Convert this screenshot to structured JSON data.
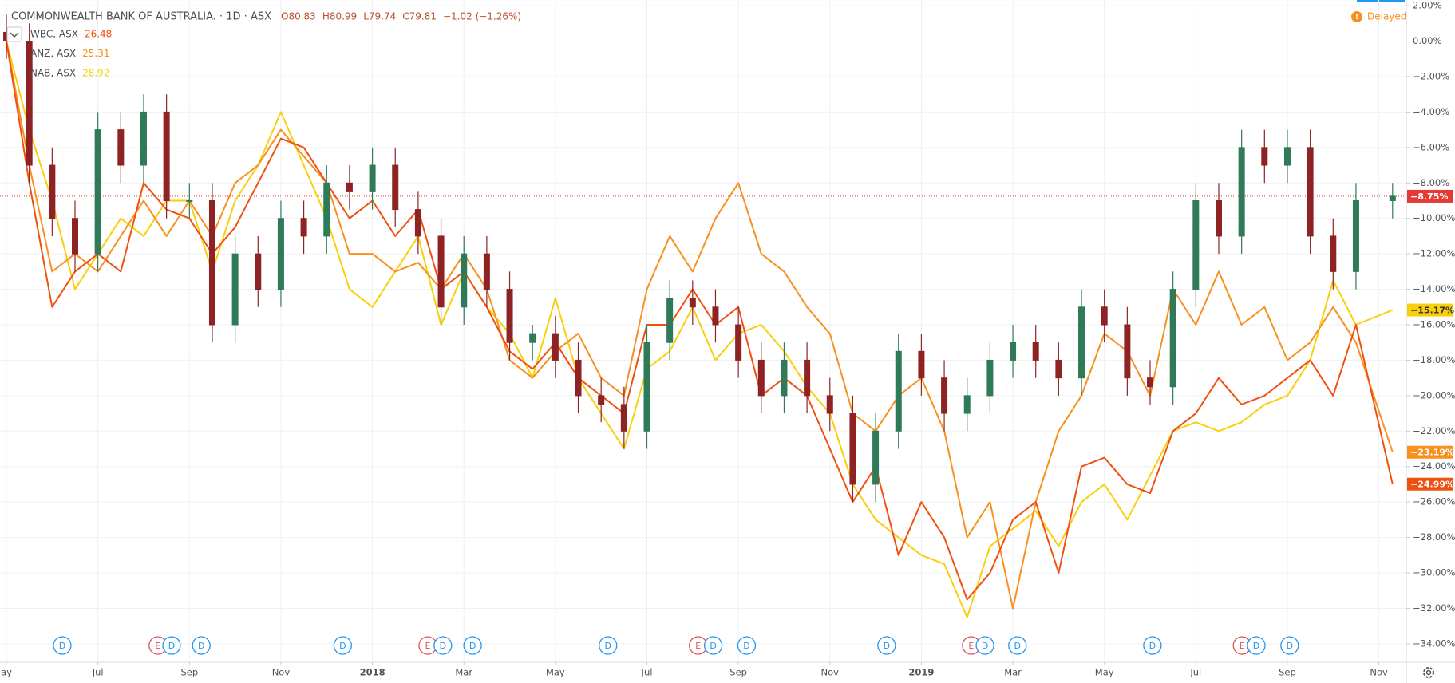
{
  "chart_data": {
    "type": "candlestick",
    "header": {
      "title": "COMMONWEALTH BANK OF AUSTRALIA. · 1D · ASX",
      "ohlc": [
        "O80.83",
        "H80.99",
        "L79.74",
        "C79.81"
      ],
      "change": "−1.02 (−1.26%)",
      "status": "Delayed",
      "color": "#b8502e"
    },
    "xlim": [
      -0.14,
      30.6
    ],
    "ylim": [
      -35.04,
      2.32
    ],
    "grid": true,
    "xticks": [
      {
        "value": 0,
        "label": "ay"
      },
      {
        "value": 2,
        "label": "Jul"
      },
      {
        "value": 4,
        "label": "Sep"
      },
      {
        "value": 6,
        "label": "Nov"
      },
      {
        "value": 8,
        "label": "2018",
        "bold": true
      },
      {
        "value": 10,
        "label": "Mar"
      },
      {
        "value": 12,
        "label": "May"
      },
      {
        "value": 14,
        "label": "Jul"
      },
      {
        "value": 16,
        "label": "Sep"
      },
      {
        "value": 18,
        "label": "Nov"
      },
      {
        "value": 20,
        "label": "2019",
        "bold": true
      },
      {
        "value": 22,
        "label": "Mar"
      },
      {
        "value": 24,
        "label": "May"
      },
      {
        "value": 26,
        "label": "Jul"
      },
      {
        "value": 28,
        "label": "Sep"
      },
      {
        "value": 30,
        "label": "Nov"
      }
    ],
    "yticks": [
      {
        "value": 2,
        "label": "2.00%"
      },
      {
        "value": 0,
        "label": "0.00%"
      },
      {
        "value": -2,
        "label": "−2.00%"
      },
      {
        "value": -4,
        "label": "−4.00%"
      },
      {
        "value": -6,
        "label": "−6.00%"
      },
      {
        "value": -8,
        "label": "−8.00%"
      },
      {
        "value": -10,
        "label": "−10.00%"
      },
      {
        "value": -12,
        "label": "−12.00%"
      },
      {
        "value": -14,
        "label": "−14.00%"
      },
      {
        "value": -16,
        "label": "−16.00%"
      },
      {
        "value": -18,
        "label": "−18.00%"
      },
      {
        "value": -20,
        "label": "−20.00%"
      },
      {
        "value": -22,
        "label": "−22.00%"
      },
      {
        "value": -24,
        "label": "−24.00%"
      },
      {
        "value": -26,
        "label": "−26.00%"
      },
      {
        "value": -28,
        "label": "−28.00%"
      },
      {
        "value": -30,
        "label": "−30.00%"
      },
      {
        "value": -32,
        "label": "−32.00%"
      },
      {
        "value": -34,
        "label": "−34.00%"
      }
    ],
    "x": [
      0,
      0.5,
      1,
      1.5,
      2,
      2.5,
      3,
      3.5,
      4,
      4.5,
      5,
      5.5,
      6,
      6.5,
      7,
      7.5,
      8,
      8.5,
      9,
      9.5,
      10,
      10.5,
      11,
      11.5,
      12,
      12.5,
      13,
      13.5,
      14,
      14.5,
      15,
      15.5,
      16,
      16.5,
      17,
      17.5,
      18,
      18.5,
      19,
      19.5,
      20,
      20.5,
      21,
      21.5,
      22,
      22.5,
      23,
      23.5,
      24,
      24.5,
      25,
      25.5,
      26,
      26.5,
      27,
      27.5,
      28,
      28.5,
      29,
      29.5,
      30.3
    ],
    "candles": {
      "up_color": "#2f7a57",
      "down_color": "#8e2323",
      "open": [
        0.5,
        0,
        -7,
        -10,
        -12,
        -5,
        -7,
        -4,
        -9,
        -9,
        -16,
        -12,
        -14,
        -10,
        -11,
        -8,
        -8.5,
        -7,
        -9.5,
        -11,
        -15,
        -12,
        -14,
        -17,
        -16.5,
        -18,
        -20,
        -20.5,
        -22,
        -17,
        -14.5,
        -15,
        -16,
        -18,
        -20,
        -18,
        -20,
        -21,
        -25,
        -22,
        -17.5,
        -19,
        -21,
        -20,
        -18,
        -17,
        -18,
        -19,
        -15,
        -16,
        -19,
        -19.5,
        -14,
        -9,
        -11,
        -6,
        -7,
        -6,
        -11,
        -13,
        -9
      ],
      "high": [
        1.5,
        1,
        -6,
        -9,
        -4,
        -4,
        -3,
        -3,
        -8,
        -8,
        -11,
        -11,
        -9,
        -9,
        -7,
        -7,
        -6,
        -6,
        -8.5,
        -10,
        -11,
        -11,
        -13,
        -16,
        -15.5,
        -17,
        -19,
        -19.5,
        -16,
        -13.5,
        -13.5,
        -14,
        -15,
        -17,
        -17,
        -17,
        -19,
        -20,
        -21,
        -16.5,
        -16.5,
        -18,
        -19,
        -17,
        -16,
        -16,
        -17,
        -14,
        -14,
        -15,
        -18,
        -13,
        -8,
        -8,
        -5,
        -5,
        -5,
        -5,
        -10,
        -8,
        -8
      ],
      "low": [
        -1,
        -8,
        -11,
        -13,
        -13,
        -8,
        -8,
        -10,
        -10,
        -17,
        -17,
        -15,
        -15,
        -12,
        -12,
        -9.5,
        -9.5,
        -10.5,
        -12,
        -16,
        -16,
        -15,
        -18,
        -18,
        -19,
        -21,
        -21.5,
        -23,
        -23,
        -18,
        -16,
        -17,
        -19,
        -21,
        -21,
        -21,
        -22,
        -26,
        -26,
        -23,
        -20,
        -22,
        -22,
        -21,
        -19,
        -19,
        -20,
        -20,
        -17,
        -20,
        -20.5,
        -20.5,
        -15,
        -12,
        -12,
        -8,
        -8,
        -12,
        -14,
        -14,
        -10
      ],
      "close": [
        0,
        -7,
        -10,
        -12,
        -5,
        -7,
        -4,
        -9,
        -9,
        -16,
        -12,
        -14,
        -10,
        -11,
        -8,
        -8.5,
        -7,
        -9.5,
        -11,
        -15,
        -12,
        -14,
        -17,
        -16.5,
        -18,
        -20,
        -20.5,
        -22,
        -17,
        -14.5,
        -15,
        -16,
        -18,
        -20,
        -18,
        -20,
        -21,
        -25,
        -22,
        -17.5,
        -19,
        -21,
        -20,
        -18,
        -17,
        -18,
        -19,
        -15,
        -16,
        -19,
        -19.5,
        -14,
        -9,
        -11,
        -6,
        -7,
        -6,
        -11,
        -13,
        -9,
        -8.75
      ]
    },
    "series": [
      {
        "name": "WBC, ASX",
        "last_price": 26.48,
        "color": "#f0500f",
        "values": [
          0,
          -8,
          -15,
          -13,
          -12,
          -13,
          -8,
          -9.5,
          -10,
          -12,
          -10.5,
          -8,
          -5.5,
          -6,
          -8,
          -10,
          -9,
          -11,
          -9.5,
          -14,
          -13,
          -15,
          -17.5,
          -18.5,
          -17,
          -19,
          -20,
          -21,
          -16,
          -16,
          -14,
          -16,
          -15,
          -20,
          -19,
          -20,
          -23,
          -26,
          -24,
          -29,
          -26,
          -28,
          -31.5,
          -30,
          -27,
          -26,
          -30,
          -24,
          -23.5,
          -25,
          -25.5,
          -22,
          -21,
          -19,
          -20.5,
          -20,
          -19,
          -18,
          -20,
          -16,
          -24.99
        ]
      },
      {
        "name": "ANZ, ASX",
        "last_price": 25.31,
        "color": "#f7901e",
        "values": [
          0,
          -7,
          -13,
          -12,
          -13,
          -11,
          -9,
          -11,
          -9,
          -11,
          -8,
          -7,
          -5,
          -6.5,
          -8,
          -12,
          -12,
          -13,
          -12.5,
          -14,
          -12,
          -14,
          -18,
          -19,
          -17.5,
          -16.5,
          -19,
          -20,
          -14,
          -11,
          -13,
          -10,
          -8,
          -12,
          -13,
          -15,
          -16.5,
          -21,
          -22,
          -20,
          -19,
          -22,
          -28,
          -26,
          -32,
          -26,
          -22,
          -20,
          -16.5,
          -17.5,
          -20,
          -14,
          -16,
          -13,
          -16,
          -15,
          -18,
          -17,
          -15,
          -17,
          -23.19
        ]
      },
      {
        "name": "NAB, ASX",
        "last_price": 28.92,
        "color": "#f9cf0a",
        "values": [
          0,
          -5,
          -9,
          -14,
          -12,
          -10,
          -11,
          -9,
          -9,
          -13,
          -9,
          -7,
          -4,
          -7,
          -10,
          -14,
          -15,
          -13,
          -11,
          -16,
          -13,
          -15,
          -16.5,
          -19,
          -14.5,
          -19,
          -21,
          -23,
          -18.5,
          -17.5,
          -15,
          -18,
          -16.5,
          -16,
          -17.5,
          -19.5,
          -21,
          -25,
          -27,
          -28,
          -29,
          -29.5,
          -32.5,
          -28.5,
          -27.5,
          -26.5,
          -28.5,
          -26,
          -25,
          -27,
          -24.5,
          -22,
          -21.5,
          -22,
          -21.5,
          -20.5,
          -20,
          -18,
          -13.5,
          -16,
          -15.17
        ]
      }
    ],
    "current_marks": [
      {
        "value": -8.75,
        "label": "−8.75%",
        "color": "#e53935",
        "text_color": "#ffffff",
        "price_line": true
      },
      {
        "value": -15.17,
        "label": "−15.17%",
        "color": "#f9cf0a",
        "text_color": "#333333"
      },
      {
        "value": -23.19,
        "label": "−23.19%",
        "color": "#f7901e",
        "text_color": "#ffffff"
      },
      {
        "value": -24.99,
        "label": "−24.99%",
        "color": "#f0500f",
        "text_color": "#ffffff"
      }
    ],
    "events": {
      "x": [
        1.22,
        3.31,
        3.61,
        4.26,
        7.35,
        9.21,
        9.54,
        10.19,
        13.15,
        15.12,
        15.45,
        16.18,
        19.24,
        21.09,
        21.39,
        22.1,
        25.05,
        27.01,
        27.32,
        28.05
      ],
      "labels": [
        "D",
        "E",
        "D",
        "D",
        "D",
        "E",
        "D",
        "D",
        "D",
        "E",
        "D",
        "D",
        "D",
        "E",
        "D",
        "D",
        "D",
        "E",
        "D",
        "D"
      ],
      "colors": {
        "D": "#2196f3",
        "E": "#e0525c"
      }
    }
  }
}
